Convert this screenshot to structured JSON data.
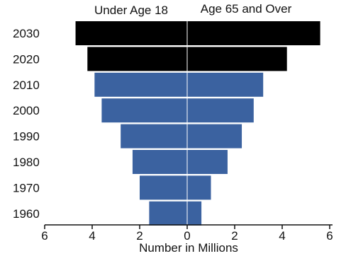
{
  "chart_data": {
    "type": "bar",
    "orientation": "horizontal-diverging",
    "categories": [
      "2030",
      "2020",
      "2010",
      "2000",
      "1990",
      "1980",
      "1970",
      "1960"
    ],
    "series": [
      {
        "name": "Under Age 18",
        "side": "left",
        "values": [
          4.7,
          4.2,
          3.9,
          3.6,
          2.8,
          2.3,
          2.0,
          1.6
        ],
        "colors": [
          "#000000",
          "#000000",
          "#3b62a0",
          "#3b62a0",
          "#3b62a0",
          "#3b62a0",
          "#3b62a0",
          "#3b62a0"
        ]
      },
      {
        "name": "Age 65 and Over",
        "side": "right",
        "values": [
          5.6,
          4.2,
          3.2,
          2.8,
          2.3,
          1.7,
          1.0,
          0.6
        ],
        "colors": [
          "#000000",
          "#000000",
          "#3b62a0",
          "#3b62a0",
          "#3b62a0",
          "#3b62a0",
          "#3b62a0",
          "#3b62a0"
        ]
      }
    ],
    "xticks": [
      "6",
      "4",
      "2",
      "0",
      "2",
      "4",
      "6"
    ],
    "xlim": [
      -6,
      6
    ],
    "xlabel": "Number in Millions",
    "ylabel": "",
    "grid": false,
    "legend": "none"
  }
}
